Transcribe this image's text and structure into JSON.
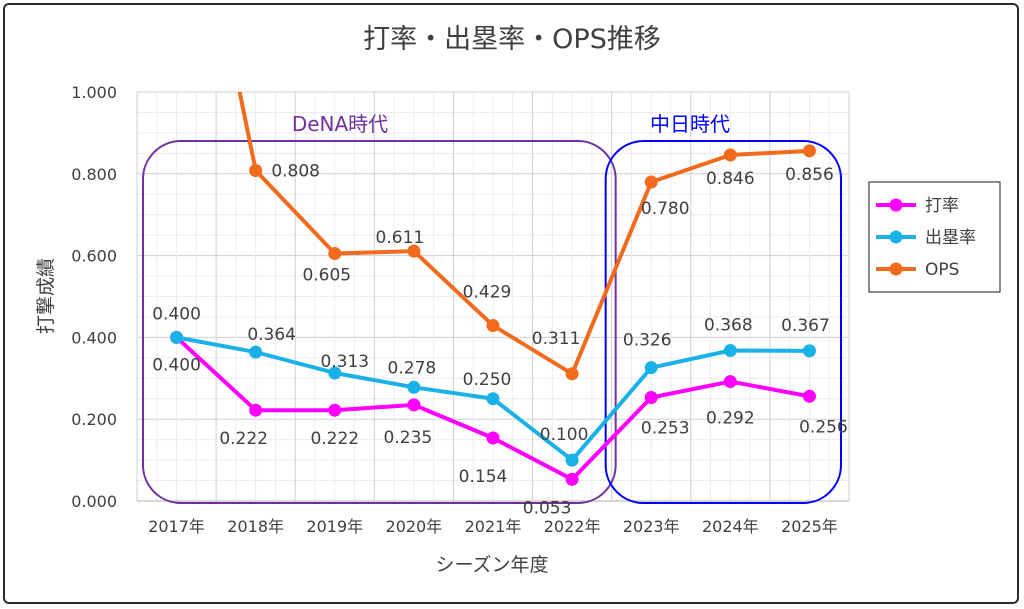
{
  "chart_data": {
    "type": "line",
    "title": "打率・出塁率・OPS推移",
    "xlabel": "シーズン年度",
    "ylabel": "打撃成績",
    "ylim": [
      0,
      1
    ],
    "y_ticks": [
      "0.000",
      "0.200",
      "0.400",
      "0.600",
      "0.800",
      "1.000"
    ],
    "categories": [
      "2017年",
      "2018年",
      "2019年",
      "2020年",
      "2021年",
      "2022年",
      "2023年",
      "2024年",
      "2025年"
    ],
    "series": [
      {
        "name": "打率",
        "color": "#ff00ff",
        "values": [
          0.4,
          0.222,
          0.222,
          0.235,
          0.154,
          0.053,
          0.253,
          0.292,
          0.256
        ],
        "labels": [
          "0.400",
          "0.222",
          "0.222",
          "0.235",
          "0.154",
          "0.053",
          "0.253",
          "0.292",
          "0.256"
        ]
      },
      {
        "name": "出塁率",
        "color": "#1ab1e8",
        "values": [
          0.4,
          0.364,
          0.313,
          0.278,
          0.25,
          0.1,
          0.326,
          0.368,
          0.367
        ],
        "labels": [
          "0.400",
          "0.364",
          "0.313",
          "0.278",
          "0.250",
          "0.100",
          "0.326",
          "0.368",
          "0.367"
        ]
      },
      {
        "name": "OPS",
        "color": "#f26b1d",
        "values": [
          null,
          0.808,
          0.605,
          0.611,
          0.429,
          0.311,
          0.78,
          0.846,
          0.856
        ],
        "labels": [
          null,
          "0.808",
          "0.605",
          "0.611",
          "0.429",
          "0.311",
          "0.780",
          "0.846",
          "0.856"
        ]
      }
    ],
    "annotations": [
      {
        "text": "DeNA時代",
        "color": "#7030a0",
        "from": 0,
        "to": 5
      },
      {
        "text": "中日時代",
        "color": "#0000ff",
        "from": 6,
        "to": 8
      }
    ],
    "legend": "right"
  }
}
